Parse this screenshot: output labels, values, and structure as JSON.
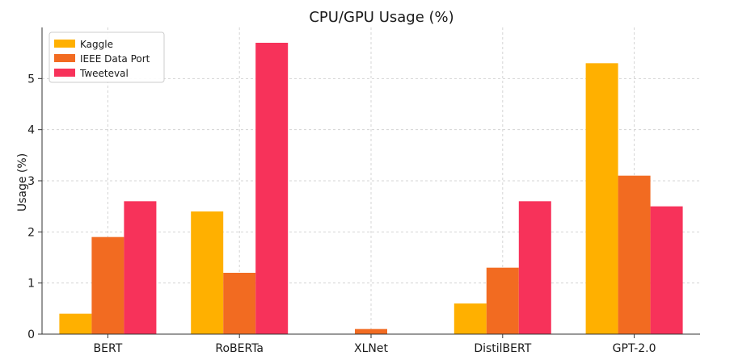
{
  "chart_data": {
    "type": "bar",
    "title": "CPU/GPU Usage (%)",
    "xlabel": "",
    "ylabel": "Usage (%)",
    "categories": [
      "BERT",
      "RoBERTa",
      "XLNet",
      "DistilBERT",
      "GPT-2.0"
    ],
    "series": [
      {
        "name": "Kaggle",
        "color": "#FFB000",
        "values": [
          0.4,
          2.4,
          0,
          0.6,
          5.3
        ]
      },
      {
        "name": "IEEE Data Port",
        "color": "#F26B21",
        "values": [
          1.9,
          1.2,
          0.1,
          1.3,
          3.1
        ]
      },
      {
        "name": "Tweeteval",
        "color": "#F7325A",
        "values": [
          2.6,
          5.7,
          0,
          2.6,
          2.5
        ]
      }
    ],
    "ylim": [
      0,
      6.0
    ],
    "yticks": [
      "0",
      "1",
      "2",
      "3",
      "4",
      "5"
    ],
    "grid": true,
    "legend_position": "top-left"
  }
}
